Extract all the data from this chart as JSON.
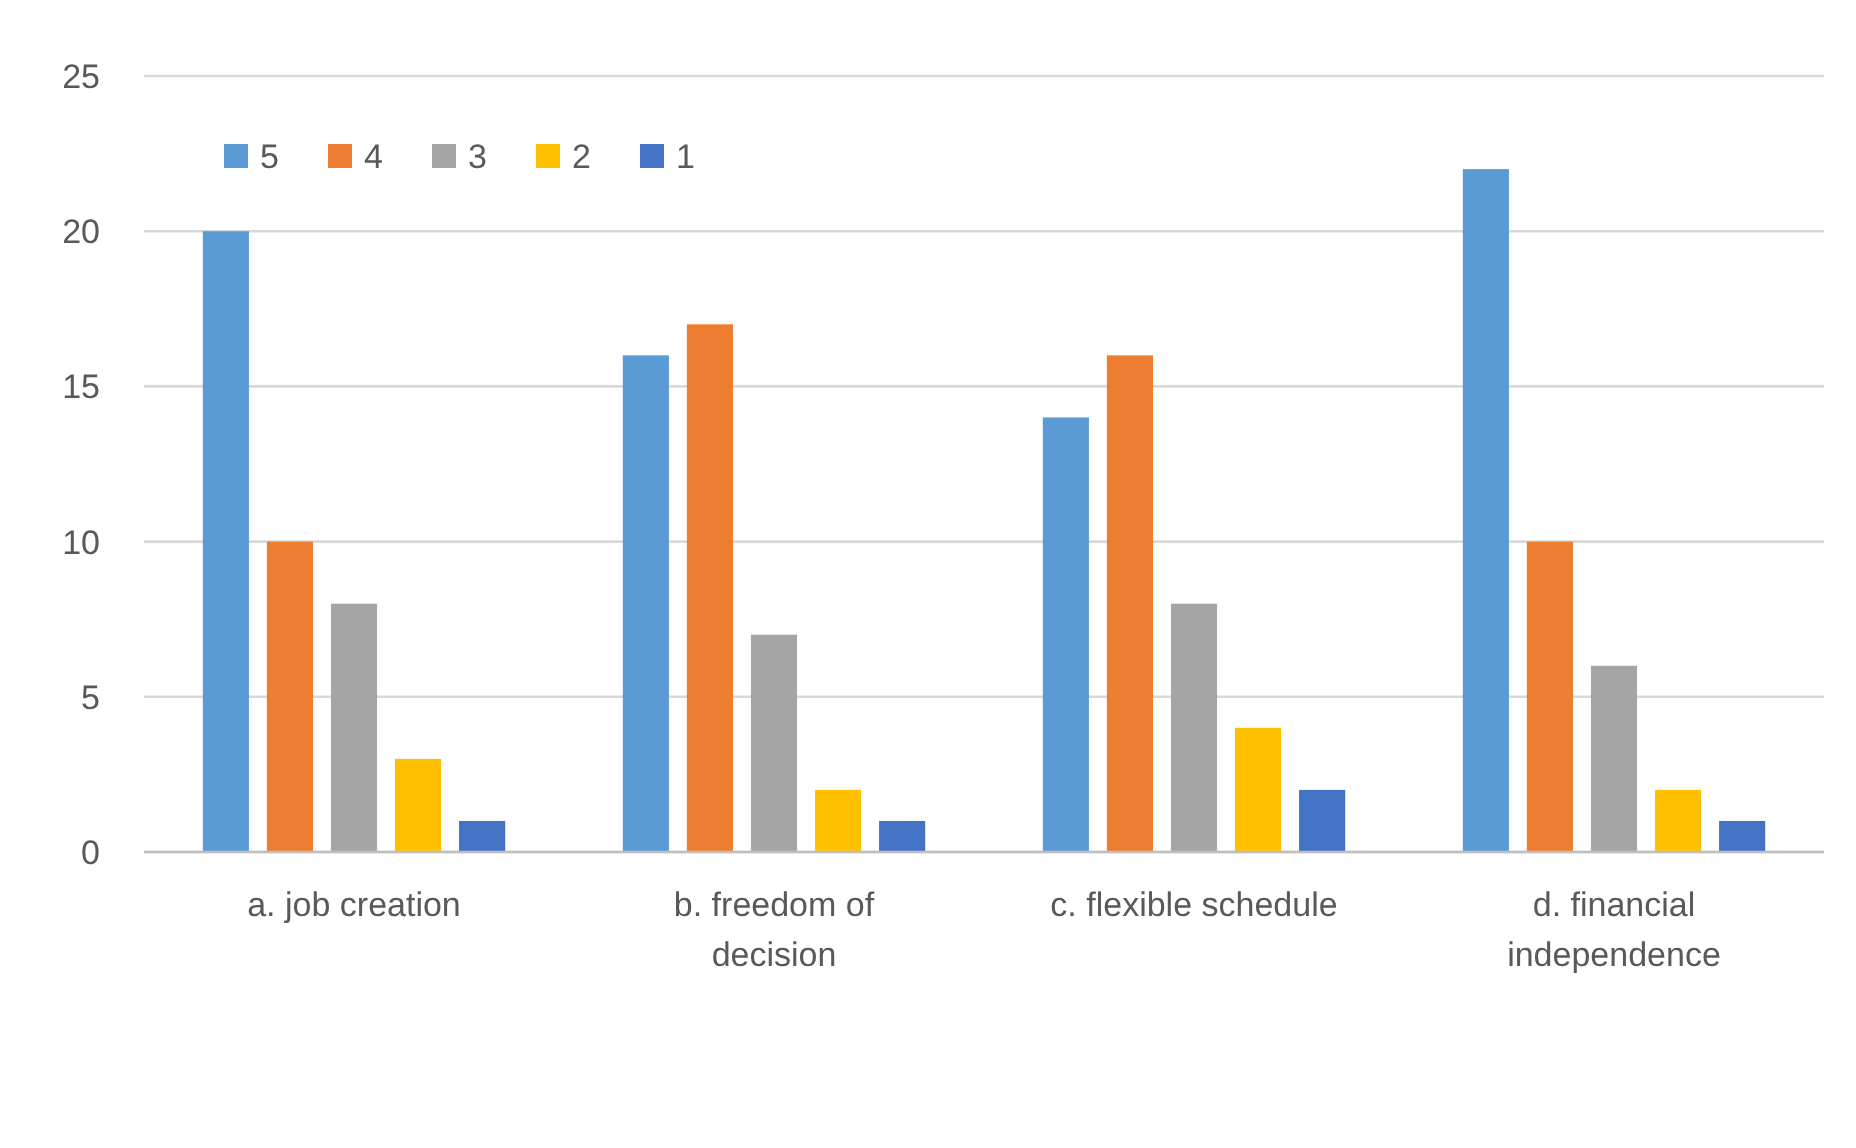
{
  "chart_data": {
    "type": "bar",
    "categories": [
      "a. job creation",
      "b. freedom of decision",
      "c. flexible schedule",
      "d. financial independence"
    ],
    "series": [
      {
        "name": "5",
        "color": "#5b9bd5",
        "values": [
          20,
          16,
          14,
          22
        ]
      },
      {
        "name": "4",
        "color": "#ed7d31",
        "values": [
          10,
          17,
          16,
          10
        ]
      },
      {
        "name": "3",
        "color": "#a5a5a5",
        "values": [
          8,
          7,
          8,
          6
        ]
      },
      {
        "name": "2",
        "color": "#ffc000",
        "values": [
          3,
          2,
          4,
          2
        ]
      },
      {
        "name": "1",
        "color": "#4472c4",
        "values": [
          1,
          1,
          2,
          1
        ]
      }
    ],
    "ylim": [
      0,
      25
    ],
    "yticks": [
      0,
      5,
      10,
      15,
      20,
      25
    ],
    "grid": "y",
    "legend": "top left"
  }
}
